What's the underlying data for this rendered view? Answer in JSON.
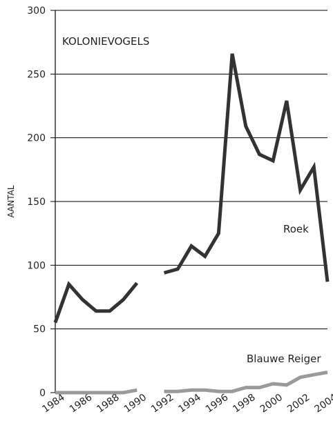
{
  "chart_data": {
    "type": "line",
    "title": "KOLONIEVOGELS",
    "ylabel": "AANTAL",
    "xlabel": "",
    "xlim": [
      1984,
      2004
    ],
    "ylim": [
      0,
      300
    ],
    "yticks": [
      0,
      50,
      100,
      150,
      200,
      250,
      300
    ],
    "xticks": [
      1984,
      1986,
      1988,
      1990,
      1992,
      1994,
      1996,
      1998,
      2000,
      2002,
      2004
    ],
    "grid": "horizontal",
    "series": [
      {
        "name": "Roek",
        "color": "#333333",
        "segments": [
          [
            [
              1984,
              55
            ],
            [
              1985,
              85
            ],
            [
              1986,
              73
            ],
            [
              1987,
              64
            ],
            [
              1988,
              64
            ],
            [
              1989,
              73
            ],
            [
              1990,
              86
            ]
          ],
          [
            [
              1992,
              94
            ],
            [
              1993,
              97
            ],
            [
              1994,
              115
            ],
            [
              1995,
              107
            ],
            [
              1996,
              125
            ],
            [
              1997,
              266
            ],
            [
              1998,
              209
            ],
            [
              1999,
              187
            ],
            [
              2000,
              182
            ],
            [
              2001,
              229
            ],
            [
              2002,
              159
            ],
            [
              2003,
              177
            ],
            [
              2004,
              87
            ]
          ]
        ]
      },
      {
        "name": "Blauwe Reiger",
        "color": "#9a9a9a",
        "segments": [
          [
            [
              1984,
              0
            ],
            [
              1985,
              0
            ],
            [
              1986,
              0
            ],
            [
              1987,
              0
            ],
            [
              1988,
              0
            ],
            [
              1989,
              0
            ],
            [
              1990,
              2
            ]
          ],
          [
            [
              1992,
              1
            ],
            [
              1993,
              1
            ],
            [
              1994,
              2
            ],
            [
              1995,
              2
            ],
            [
              1996,
              1
            ],
            [
              1997,
              1
            ],
            [
              1998,
              4
            ],
            [
              1999,
              4
            ],
            [
              2000,
              7
            ],
            [
              2001,
              6
            ],
            [
              2002,
              12
            ],
            [
              2003,
              14
            ],
            [
              2004,
              16
            ]
          ]
        ]
      }
    ]
  }
}
